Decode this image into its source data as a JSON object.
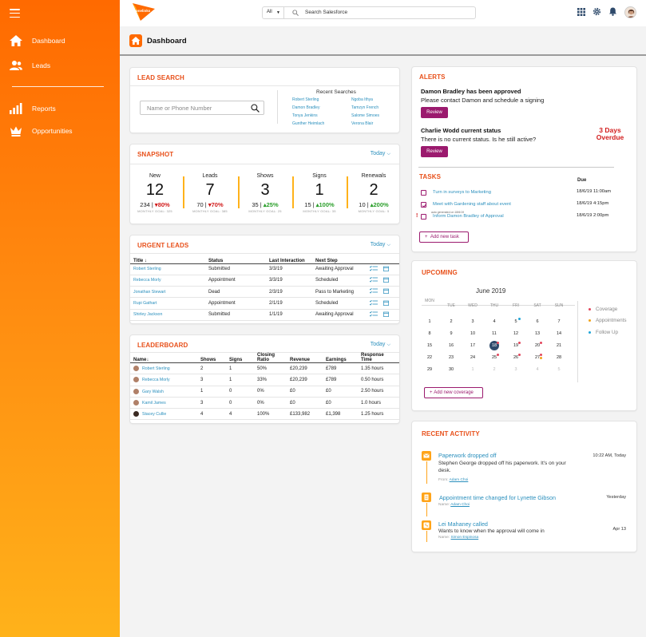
{
  "sidebar": {
    "items": [
      {
        "label": "Dashboard",
        "icon": "home-icon"
      },
      {
        "label": "Leads",
        "icon": "users-icon"
      },
      {
        "label": "Reports",
        "icon": "bar-chart-icon"
      },
      {
        "label": "Opportunities",
        "icon": "crown-icon"
      }
    ]
  },
  "topbar": {
    "logo_text": "onelinks",
    "search_scope": "All",
    "search_value": "Search Salesforce"
  },
  "page": {
    "title": "Dashboard"
  },
  "lead_search": {
    "title": "LEAD SEARCH",
    "placeholder": "Name or Phone Number",
    "recent_title": "Recent Searches",
    "recent_left": [
      "Robert Sterling",
      "Damon Bradley",
      "Tonya Jenkins",
      "Gunther Heimlach"
    ],
    "recent_right": [
      "Ngoba Ithya",
      "Tamzyn French",
      "Salome Simoes",
      "Verona Blair"
    ]
  },
  "snapshot": {
    "title": "SNAPSHOT",
    "filter": "Today",
    "metrics": [
      {
        "label": "New",
        "value": "12",
        "sub": "234",
        "pct": "80%",
        "dir": "down",
        "goal": "MONTHLY GOAL: 325"
      },
      {
        "label": "Leads",
        "value": "7",
        "sub": "70",
        "pct": "70%",
        "dir": "down",
        "goal": "MONTHLY GOAL: 385"
      },
      {
        "label": "Shows",
        "value": "3",
        "sub": "35",
        "pct": "25%",
        "dir": "up",
        "goal": "MONTHLY GOAL: 25"
      },
      {
        "label": "Signs",
        "value": "1",
        "sub": "15",
        "pct": "100%",
        "dir": "up",
        "goal": "MONTHLY GOAL: 35"
      },
      {
        "label": "Renewals",
        "value": "2",
        "sub": "10",
        "pct": "200%",
        "dir": "up",
        "goal": "MONTHLY GOAL: 5"
      }
    ]
  },
  "urgent_leads": {
    "title": "URGENT LEADS",
    "filter": "Today",
    "headers": [
      "Title",
      "Status",
      "Last Interaction",
      "Next Step"
    ],
    "rows": [
      {
        "name": "Robert Sterling",
        "status": "Submitted",
        "date": "3/3/19",
        "next": "Awaiting Approval"
      },
      {
        "name": "Rebecca Morly",
        "status": "Appointment",
        "date": "3/3/19",
        "next": "Scheduled"
      },
      {
        "name": "Jonathan Stewart",
        "status": "Dead",
        "date": "2/3/19",
        "next": "Pass to Marketing"
      },
      {
        "name": "Rupi Gathart",
        "status": "Appointment",
        "date": "2/1/19",
        "next": "Scheduled"
      },
      {
        "name": "Shirley Jackson",
        "status": "Submitted",
        "date": "1/1/19",
        "next": "Awaiting Approval"
      }
    ]
  },
  "leaderboard": {
    "title": "LEADERBOARD",
    "filter": "Today",
    "headers": [
      "Name",
      "Shows",
      "Signs",
      "Closing Ratio",
      "Revenue",
      "Earnings",
      "Response Time"
    ],
    "rows": [
      {
        "name": "Robert Sterling",
        "shows": "2",
        "signs": "1",
        "ratio": "50%",
        "revenue": "£20,239",
        "earnings": "£789",
        "resp": "1.35 hours"
      },
      {
        "name": "Rebecca Morly",
        "shows": "3",
        "signs": "1",
        "ratio": "33%",
        "revenue": "£20,239",
        "earnings": "£789",
        "resp": "0.50 hours"
      },
      {
        "name": "Gary Walsh",
        "shows": "1",
        "signs": "0",
        "ratio": "0%",
        "revenue": "£0",
        "earnings": "£0",
        "resp": "2.50 hours"
      },
      {
        "name": "Kamil James",
        "shows": "3",
        "signs": "0",
        "ratio": "0%",
        "revenue": "£0",
        "earnings": "£0",
        "resp": "1.0 hours"
      },
      {
        "name": "Stacey Cullie",
        "shows": "4",
        "signs": "4",
        "ratio": "100%",
        "revenue": "£133,982",
        "earnings": "£1,398",
        "resp": "1.25 hours"
      }
    ]
  },
  "alerts": {
    "title": "ALERTS",
    "items": [
      {
        "heading": "Damon Bradley has been approved",
        "text": "Please contact Damon and schedule a signing",
        "button": "Review"
      },
      {
        "heading": "Charlie Wodd current status",
        "text": "There is no current status. Is he still active?",
        "button": "Review",
        "flag": "3 Days Overdue"
      }
    ]
  },
  "tasks": {
    "title": "TASKS",
    "due_header": "Due",
    "items": [
      {
        "text": "Turn in surveys to Marketing",
        "due": "18/6/19  11:00am",
        "checked": false
      },
      {
        "text": "Meet with Gardening staff about event",
        "due": "18/6/19  4:15pm",
        "checked": true
      },
      {
        "text": "Inform Damon Bradley of Approval",
        "due": "18/6/19  2:00pm",
        "checked": false,
        "note": "auto generated on 18/6/19",
        "urgent": "!"
      }
    ],
    "add_label": "Add new task"
  },
  "upcoming": {
    "title": "UPCOMING",
    "month": "June 2019",
    "weekdays": [
      "MON",
      "TUE",
      "WED",
      "THU",
      "FRI",
      "SAT",
      "SUN"
    ],
    "weeks": [
      [
        "1",
        "2",
        "3",
        "4",
        "5",
        "6",
        "7"
      ],
      [
        "8",
        "9",
        "10",
        "11",
        "12",
        "13",
        "14"
      ],
      [
        "15",
        "16",
        "17",
        "18",
        "19",
        "20",
        "21"
      ],
      [
        "22",
        "23",
        "24",
        "25",
        "26",
        "27",
        "28"
      ],
      [
        "29",
        "30",
        "1",
        "2",
        "3",
        "4",
        "5"
      ]
    ],
    "selected_day": "18",
    "legend": [
      "Coverage",
      "Appointments",
      "Follow Up"
    ],
    "colors": {
      "coverage": "#e2455b",
      "appointments": "#f2a31a",
      "followup": "#1fa5d8"
    },
    "add_label": "Add new coverage"
  },
  "recent_activity": {
    "title": "RECENT ACTIVITY",
    "items": [
      {
        "title": "Paperwork dropped off",
        "desc": "Stephen George dropped off his paperwork. It's on your desk.",
        "meta_label": "From:",
        "meta_who": "Adam Choi",
        "when": "10:22 AM, Today",
        "icon": "mail-icon"
      },
      {
        "title": "Appointment time changed for Lynette Gibson",
        "desc": "",
        "meta_label": "Name:",
        "meta_who": "Adam Choi",
        "when": "Yesterday",
        "icon": "document-icon"
      },
      {
        "title": "Lei Mahaney called",
        "desc": "Wants to know when the approval will come in",
        "meta_label": "Name:",
        "meta_who": "Simon Espinosa",
        "when": "Apr 13",
        "icon": "phone-icon"
      }
    ]
  },
  "colors": {
    "accent": "#e8501a",
    "brand_orange": "#ff6a00",
    "link": "#2a8fbd",
    "plum": "#9b1a6e",
    "danger": "#d21c1c",
    "success": "#2c9f2c"
  }
}
